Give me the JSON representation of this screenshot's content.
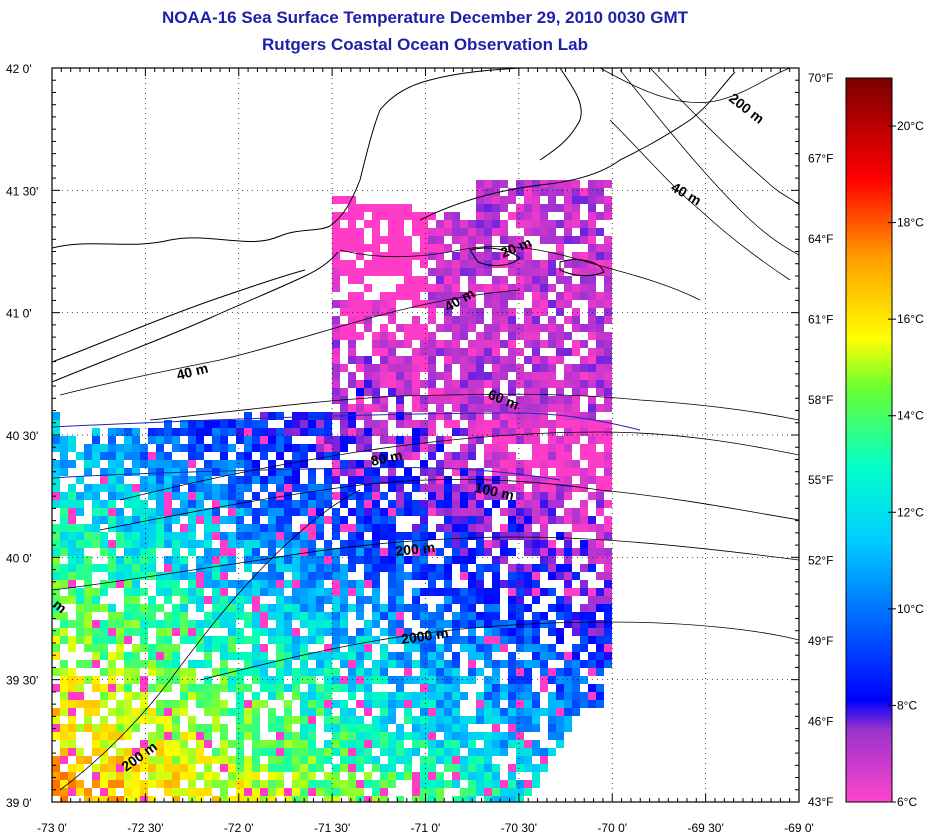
{
  "header": {
    "title": "NOAA-16 Sea Surface Temperature December 29, 2010 0030 GMT",
    "subtitle": "Rutgers Coastal Ocean Observation Lab"
  },
  "map": {
    "lat_labels": [
      "42 0'",
      "41 30'",
      "41 0'",
      "40 30'",
      "40 0'",
      "39 30'",
      "39 0'"
    ],
    "lon_labels": [
      "-73 0'",
      "-72 30'",
      "-72 0'",
      "-71 30'",
      "-71 0'",
      "-70 30'",
      "-70 0'",
      "-69 30'",
      "-69 0'"
    ],
    "lat_range": [
      39.0,
      42.0
    ],
    "lon_range": [
      -73.0,
      -69.0
    ],
    "fahrenheit_labels": [
      "70°F",
      "67°F",
      "64°F",
      "61°F",
      "58°F",
      "55°F",
      "52°F",
      "49°F",
      "46°F",
      "43°F"
    ],
    "isobath_labels": [
      {
        "text": "20 m"
      },
      {
        "text": "40 m"
      },
      {
        "text": "40 m"
      },
      {
        "text": "40 m"
      },
      {
        "text": "60 m"
      },
      {
        "text": "80 m"
      },
      {
        "text": "100 m"
      },
      {
        "text": "200 m"
      },
      {
        "text": "2000 m"
      },
      {
        "text": "200 m"
      },
      {
        "text": "200 m"
      },
      {
        "text": "m"
      }
    ]
  },
  "colorbar": {
    "celsius_labels": [
      "20°C",
      "18°C",
      "16°C",
      "14°C",
      "12°C",
      "10°C",
      "8°C",
      "6°C"
    ],
    "colors": [
      "#8b0000",
      "#ff0000",
      "#ff8c00",
      "#ffff00",
      "#00ff7f",
      "#00ffff",
      "#0099ff",
      "#0000ff",
      "#ff44cc"
    ]
  }
}
